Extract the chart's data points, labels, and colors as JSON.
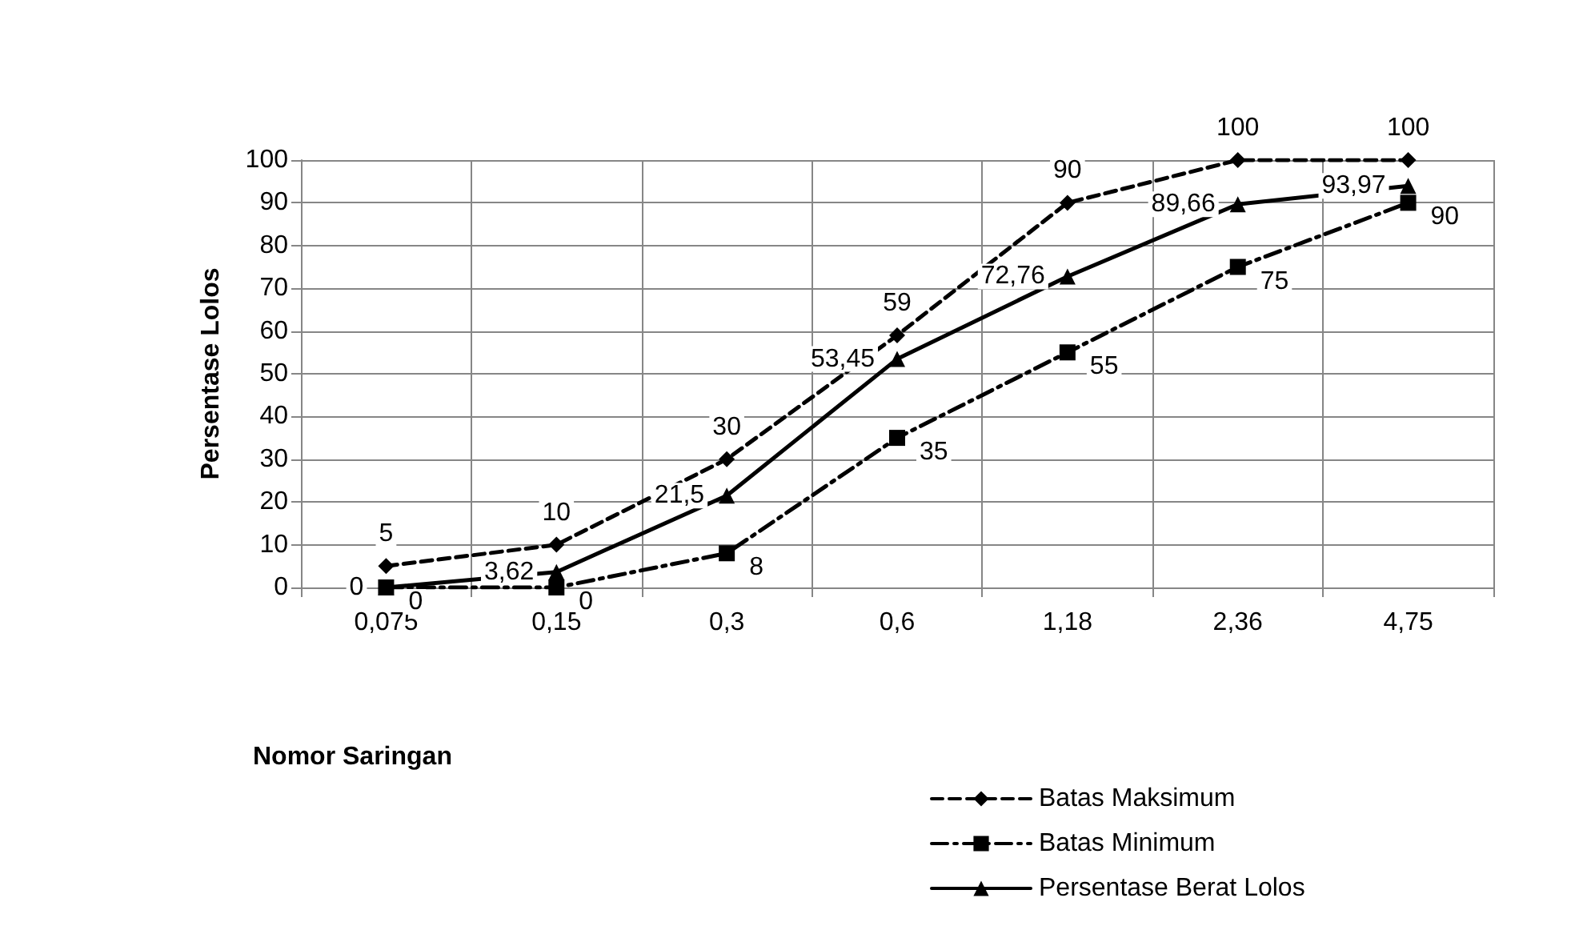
{
  "chart_data": {
    "type": "line",
    "xlabel": "Nomor Saringan",
    "ylabel": "Persentase Lolos",
    "categories": [
      "0,075",
      "0,15",
      "0,3",
      "0,6",
      "1,18",
      "2,36",
      "4,75"
    ],
    "ylim": [
      0,
      100
    ],
    "yticks": [
      0,
      10,
      20,
      30,
      40,
      50,
      60,
      70,
      80,
      90,
      100
    ],
    "grid": true,
    "legend": "bottom right",
    "series": [
      {
        "name": "Batas Maksimum",
        "color": "#000000",
        "marker": "diamond",
        "line_style": "dashed",
        "values": [
          5,
          10,
          30,
          59,
          90,
          100,
          100
        ],
        "value_labels": [
          "5",
          "10",
          "30",
          "59",
          "90",
          "100",
          "100"
        ]
      },
      {
        "name": "Batas Minimum",
        "color": "#000000",
        "marker": "square",
        "line_style": "dashdot",
        "values": [
          0,
          0,
          8,
          35,
          55,
          75,
          90
        ],
        "value_labels": [
          "0",
          "0",
          "8",
          "35",
          "55",
          "75",
          "90"
        ]
      },
      {
        "name": "Persentase Berat Lolos",
        "color": "#000000",
        "marker": "triangle",
        "line_style": "solid",
        "values": [
          0,
          3.62,
          21.5,
          53.45,
          72.76,
          89.66,
          93.97
        ],
        "value_labels": [
          "0",
          "3,62",
          "21,5",
          "53,45",
          "72,76",
          "89,66",
          "93,97"
        ]
      }
    ]
  }
}
